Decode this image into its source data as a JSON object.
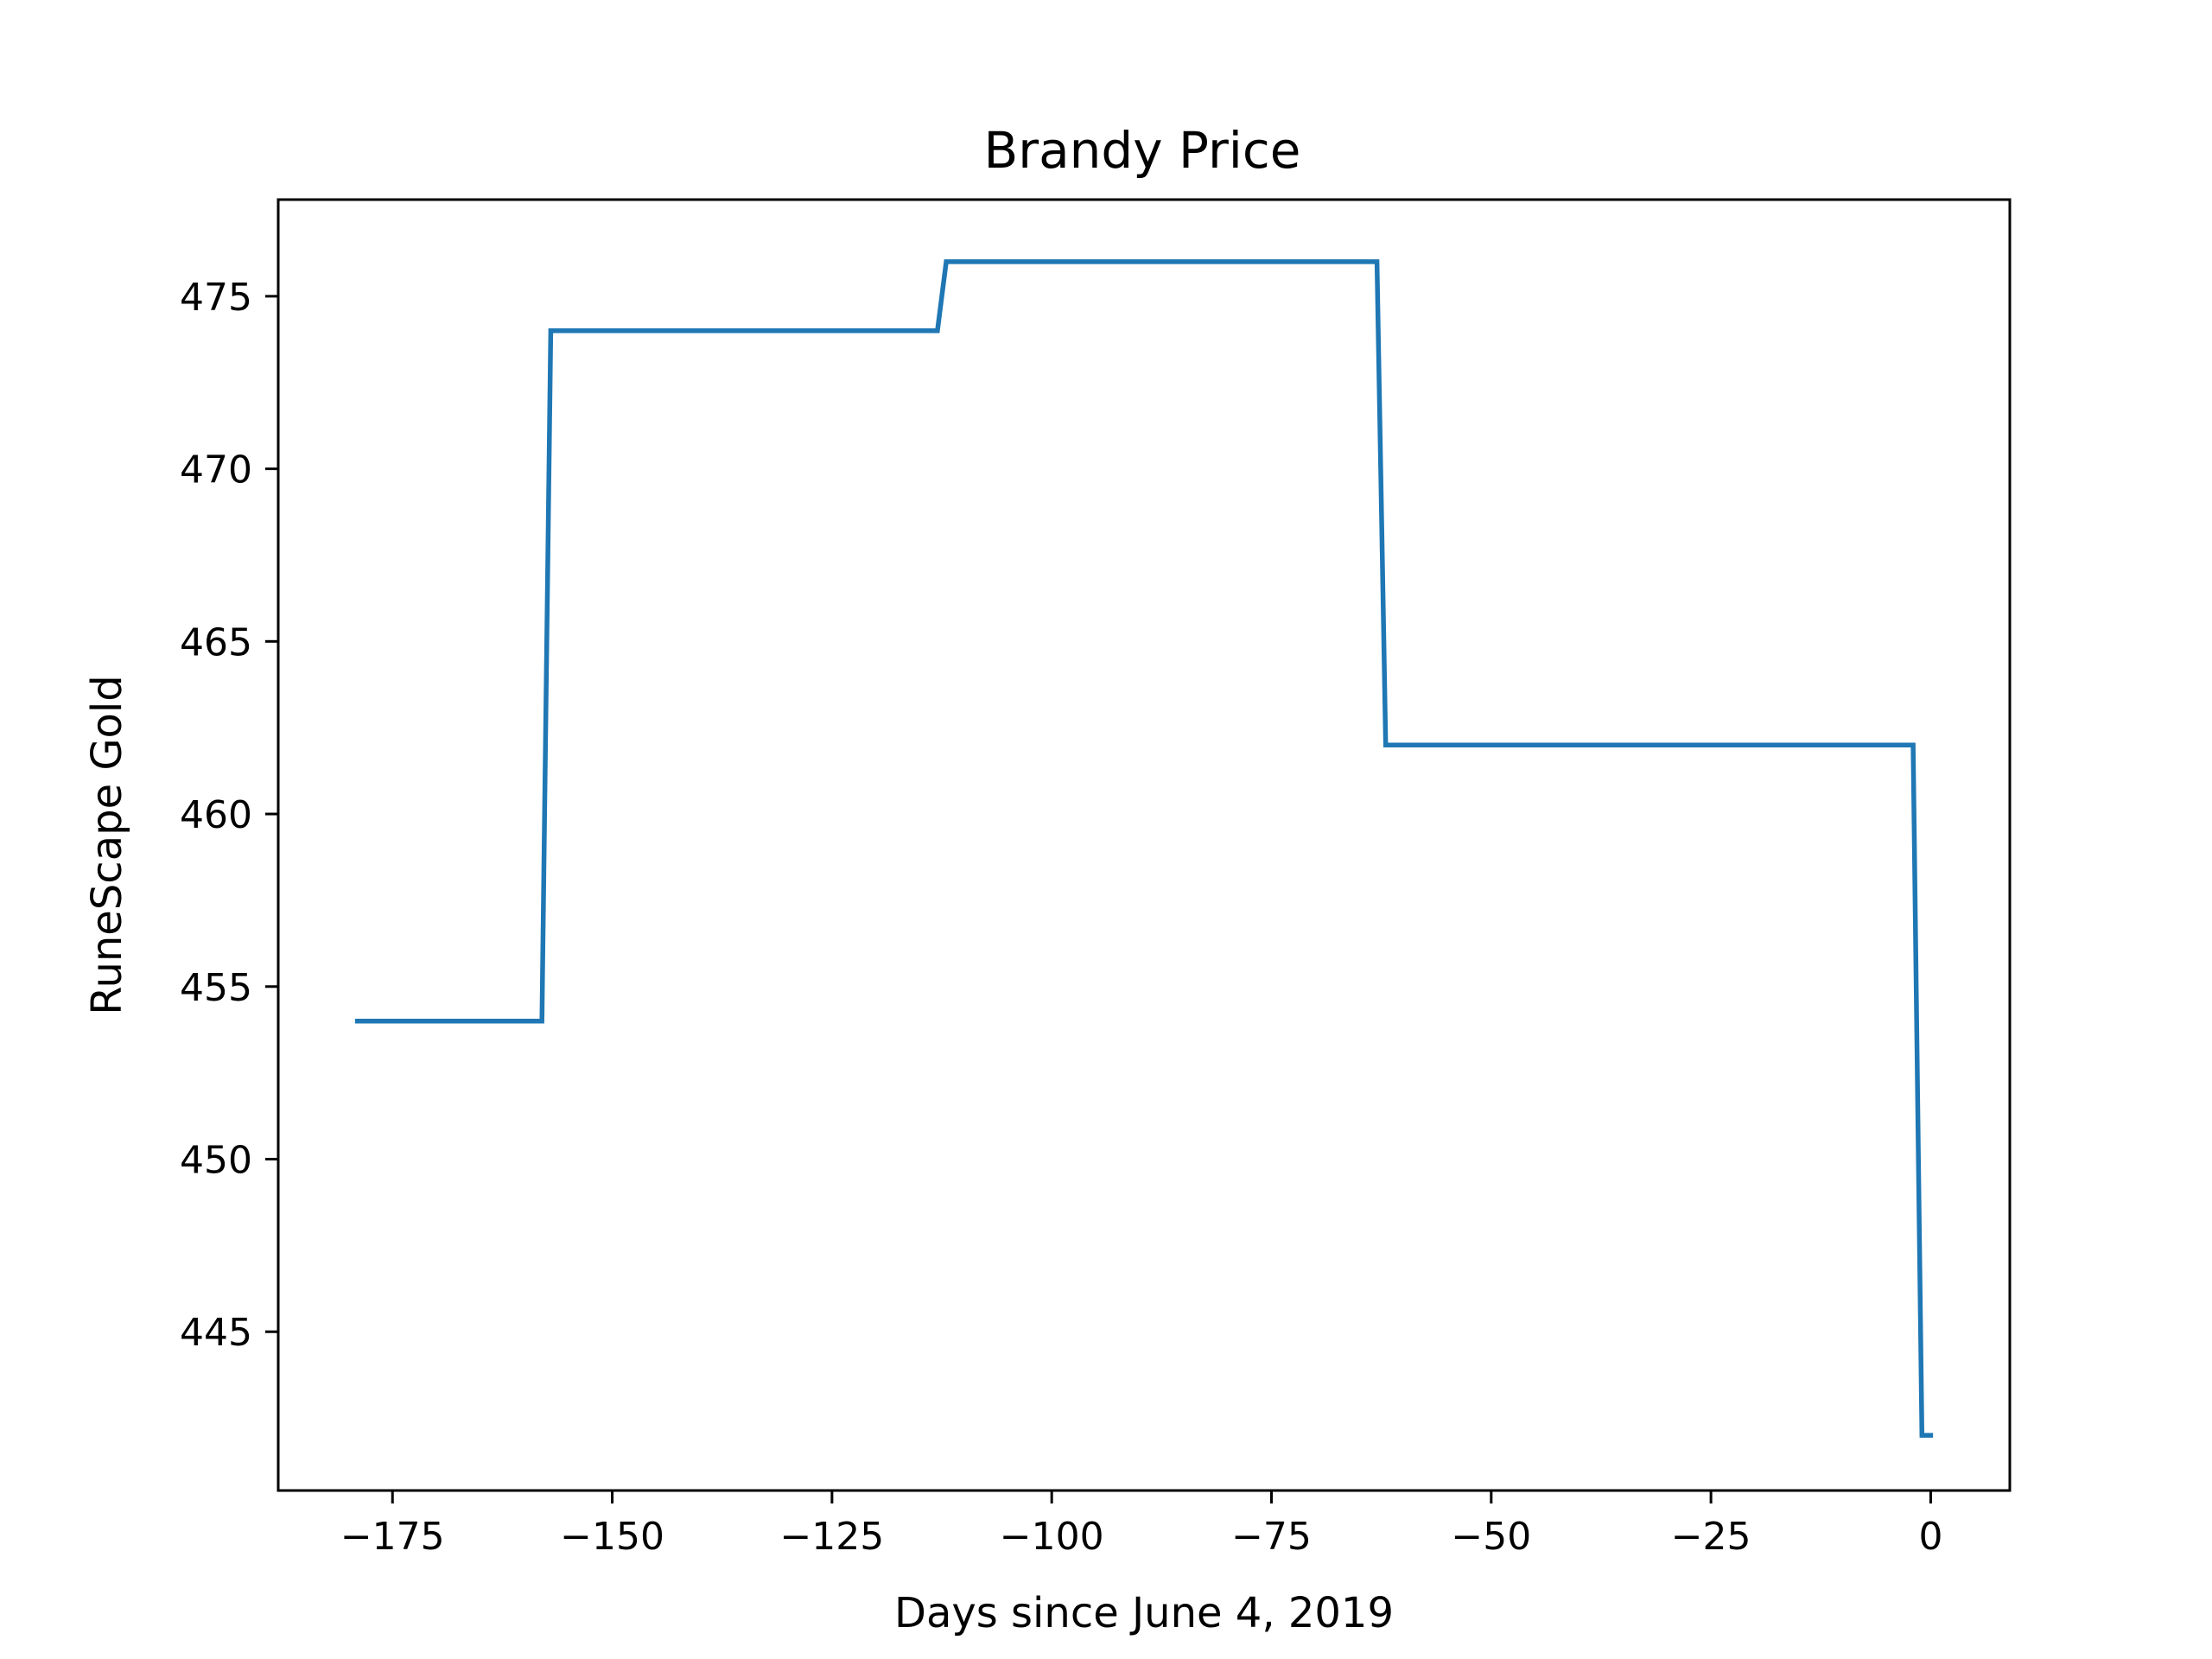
{
  "chart_data": {
    "type": "line",
    "title": "Brandy Price",
    "xlabel": "Days since June 4, 2019",
    "ylabel": "RuneScape Gold",
    "xlim": [
      -188.0,
      9.0
    ],
    "ylim": [
      440.4,
      477.8
    ],
    "grid": false,
    "legend": "none",
    "xticks": [
      -175,
      -150,
      -125,
      -100,
      -75,
      -50,
      -25,
      0
    ],
    "xtick_labels": [
      "−175",
      "−150",
      "−125",
      "−100",
      "−75",
      "−50",
      "−25",
      "0"
    ],
    "yticks": [
      445,
      450,
      455,
      460,
      465,
      470,
      475
    ],
    "ytick_labels": [
      "445",
      "450",
      "455",
      "460",
      "465",
      "470",
      "475"
    ],
    "series": [
      {
        "color": "#1f77b4",
        "x": [
          -179,
          -158,
          -157,
          -113,
          -112,
          -63,
          -62,
          -2,
          -1,
          0
        ],
        "y": [
          454,
          454,
          474,
          474,
          476,
          476,
          462,
          462,
          442,
          442
        ]
      }
    ]
  }
}
